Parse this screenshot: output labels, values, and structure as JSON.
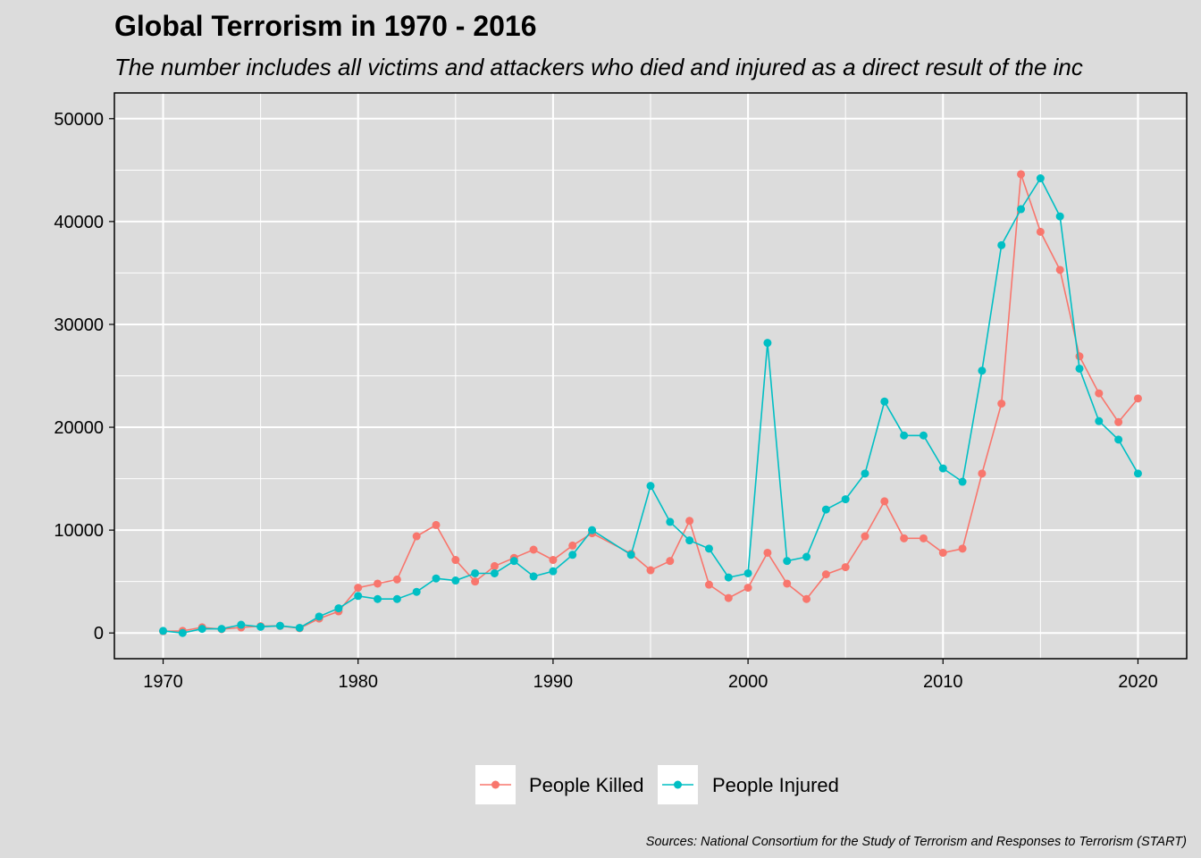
{
  "chart_data": {
    "type": "line",
    "title": "Global Terrorism in 1970 - 2016",
    "subtitle": "The number includes all victims and attackers who died and injured as a direct result of the inc",
    "caption": "Sources: National Consortium for the Study of Terrorism and Responses to Terrorism (START)",
    "xlabel": "",
    "ylabel": "",
    "xlim": [
      1967.5,
      2022.5
    ],
    "ylim": [
      -2500,
      52500
    ],
    "x_ticks": [
      1970,
      1980,
      1990,
      2000,
      2010,
      2020
    ],
    "x_tick_labels": [
      "1970",
      "1980",
      "1990",
      "2000",
      "2010",
      "2020"
    ],
    "y_ticks": [
      0,
      10000,
      20000,
      30000,
      40000,
      50000
    ],
    "y_tick_labels": [
      "0",
      "10000",
      "20000",
      "30000",
      "40000",
      "50000"
    ],
    "grid": true,
    "legend_position": "bottom",
    "series": [
      {
        "name": "People Killed",
        "color": "#f8766d",
        "points": [
          [
            1970,
            170
          ],
          [
            1971,
            200
          ],
          [
            1972,
            550
          ],
          [
            1973,
            370
          ],
          [
            1974,
            540
          ],
          [
            1975,
            660
          ],
          [
            1976,
            690
          ],
          [
            1977,
            460
          ],
          [
            1978,
            1400
          ],
          [
            1979,
            2100
          ],
          [
            1980,
            4400
          ],
          [
            1981,
            4800
          ],
          [
            1982,
            5200
          ],
          [
            1983,
            9400
          ],
          [
            1984,
            10500
          ],
          [
            1985,
            7100
          ],
          [
            1986,
            5000
          ],
          [
            1987,
            6500
          ],
          [
            1988,
            7300
          ],
          [
            1989,
            8100
          ],
          [
            1990,
            7100
          ],
          [
            1991,
            8500
          ],
          [
            1992,
            9700
          ],
          [
            1994,
            7700
          ],
          [
            1995,
            6100
          ],
          [
            1996,
            7000
          ],
          [
            1997,
            10900
          ],
          [
            1998,
            4700
          ],
          [
            1999,
            3400
          ],
          [
            2000,
            4400
          ],
          [
            2001,
            7800
          ],
          [
            2002,
            4800
          ],
          [
            2003,
            3300
          ],
          [
            2004,
            5700
          ],
          [
            2005,
            6400
          ],
          [
            2006,
            9400
          ],
          [
            2007,
            12800
          ],
          [
            2008,
            9200
          ],
          [
            2009,
            9200
          ],
          [
            2010,
            7800
          ],
          [
            2011,
            8200
          ],
          [
            2012,
            15500
          ],
          [
            2013,
            22300
          ],
          [
            2014,
            44600
          ],
          [
            2015,
            39000
          ],
          [
            2016,
            35300
          ],
          [
            2017,
            26900
          ],
          [
            2018,
            23300
          ],
          [
            2019,
            20500
          ],
          [
            2020,
            22800
          ]
        ]
      },
      {
        "name": "People Injured",
        "color": "#00bfc4",
        "points": [
          [
            1970,
            200
          ],
          [
            1971,
            0
          ],
          [
            1972,
            400
          ],
          [
            1973,
            400
          ],
          [
            1974,
            800
          ],
          [
            1975,
            600
          ],
          [
            1976,
            700
          ],
          [
            1977,
            500
          ],
          [
            1978,
            1600
          ],
          [
            1979,
            2400
          ],
          [
            1980,
            3600
          ],
          [
            1981,
            3300
          ],
          [
            1982,
            3300
          ],
          [
            1983,
            4000
          ],
          [
            1984,
            5300
          ],
          [
            1985,
            5100
          ],
          [
            1986,
            5800
          ],
          [
            1987,
            5800
          ],
          [
            1988,
            7000
          ],
          [
            1989,
            5500
          ],
          [
            1990,
            6000
          ],
          [
            1991,
            7600
          ],
          [
            1992,
            10000
          ],
          [
            1994,
            7600
          ],
          [
            1995,
            14300
          ],
          [
            1996,
            10800
          ],
          [
            1997,
            9000
          ],
          [
            1998,
            8200
          ],
          [
            1999,
            5400
          ],
          [
            2000,
            5800
          ],
          [
            2001,
            28200
          ],
          [
            2002,
            7000
          ],
          [
            2003,
            7400
          ],
          [
            2004,
            12000
          ],
          [
            2005,
            13000
          ],
          [
            2006,
            15500
          ],
          [
            2007,
            22500
          ],
          [
            2008,
            19200
          ],
          [
            2009,
            19200
          ],
          [
            2010,
            16000
          ],
          [
            2011,
            14700
          ],
          [
            2012,
            25500
          ],
          [
            2013,
            37700
          ],
          [
            2014,
            41200
          ],
          [
            2015,
            44200
          ],
          [
            2016,
            40500
          ],
          [
            2017,
            25700
          ],
          [
            2018,
            20600
          ],
          [
            2019,
            18800
          ],
          [
            2020,
            15500
          ]
        ]
      }
    ]
  }
}
